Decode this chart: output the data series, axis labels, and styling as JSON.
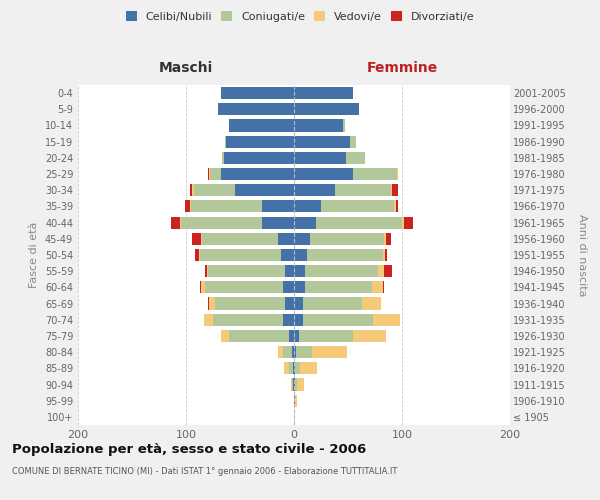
{
  "age_groups": [
    "100+",
    "95-99",
    "90-94",
    "85-89",
    "80-84",
    "75-79",
    "70-74",
    "65-69",
    "60-64",
    "55-59",
    "50-54",
    "45-49",
    "40-44",
    "35-39",
    "30-34",
    "25-29",
    "20-24",
    "15-19",
    "10-14",
    "5-9",
    "0-4"
  ],
  "birth_years": [
    "≤ 1905",
    "1906-1910",
    "1911-1915",
    "1916-1920",
    "1921-1925",
    "1926-1930",
    "1931-1935",
    "1936-1940",
    "1941-1945",
    "1946-1950",
    "1951-1955",
    "1956-1960",
    "1961-1965",
    "1966-1970",
    "1971-1975",
    "1976-1980",
    "1981-1985",
    "1986-1990",
    "1991-1995",
    "1996-2000",
    "2001-2005"
  ],
  "maschi": {
    "celibi": [
      0,
      0,
      1,
      1,
      2,
      5,
      10,
      8,
      10,
      8,
      12,
      15,
      30,
      30,
      55,
      68,
      65,
      63,
      60,
      70,
      68
    ],
    "coniugati": [
      0,
      0,
      1,
      4,
      8,
      55,
      65,
      65,
      72,
      72,
      75,
      70,
      75,
      65,
      38,
      10,
      2,
      1,
      0,
      0,
      0
    ],
    "vedovi": [
      0,
      0,
      1,
      4,
      5,
      8,
      8,
      6,
      4,
      1,
      1,
      1,
      1,
      1,
      1,
      1,
      0,
      0,
      0,
      0,
      0
    ],
    "divorziati": [
      0,
      0,
      0,
      0,
      0,
      0,
      0,
      1,
      1,
      1,
      4,
      8,
      8,
      5,
      2,
      1,
      0,
      0,
      0,
      0,
      0
    ]
  },
  "femmine": {
    "nubili": [
      0,
      1,
      1,
      1,
      2,
      5,
      8,
      8,
      10,
      10,
      12,
      15,
      20,
      25,
      38,
      55,
      48,
      52,
      45,
      60,
      55
    ],
    "coniugate": [
      0,
      0,
      2,
      5,
      15,
      50,
      65,
      55,
      62,
      68,
      70,
      68,
      80,
      68,
      52,
      40,
      18,
      5,
      2,
      0,
      0
    ],
    "vedove": [
      0,
      2,
      6,
      15,
      32,
      30,
      25,
      18,
      10,
      5,
      2,
      2,
      2,
      1,
      1,
      1,
      0,
      0,
      0,
      0,
      0
    ],
    "divorziate": [
      0,
      0,
      0,
      0,
      0,
      0,
      0,
      0,
      1,
      8,
      2,
      5,
      8,
      2,
      5,
      0,
      0,
      0,
      0,
      0,
      0
    ]
  },
  "colors": {
    "celibi": "#4472a8",
    "coniugati": "#b2c89a",
    "vedovi": "#f5c97a",
    "divorziati": "#cc2222"
  },
  "xlim": 200,
  "title": "Popolazione per età, sesso e stato civile - 2006",
  "subtitle": "COMUNE DI BERNATE TICINO (MI) - Dati ISTAT 1° gennaio 2006 - Elaborazione TUTTITALIA.IT",
  "ylabel_left": "Fasce di età",
  "ylabel_right": "Anni di nascita",
  "xlabel_left": "Maschi",
  "xlabel_right": "Femmine",
  "bg_color": "#f0f0f0",
  "plot_bg": "#ffffff",
  "grid_color": "#cccccc"
}
